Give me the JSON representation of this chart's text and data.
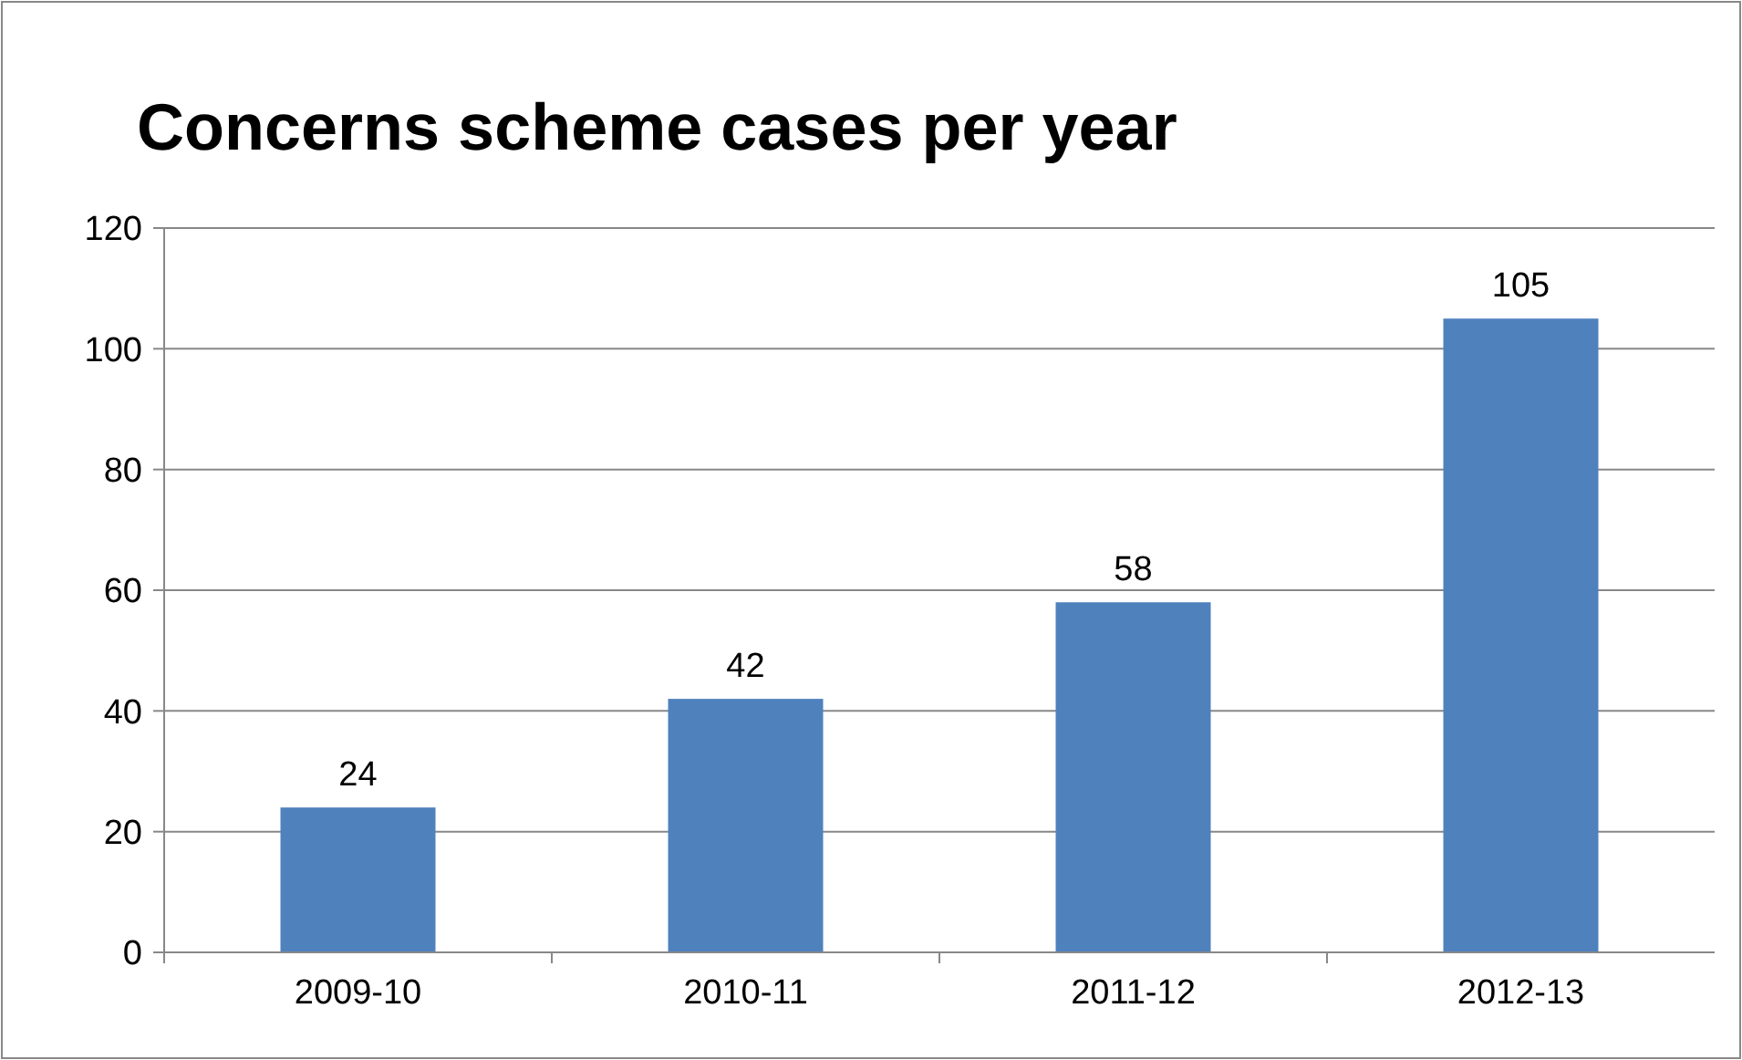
{
  "chart_data": {
    "type": "bar",
    "title": "Concerns scheme cases per year",
    "categories": [
      "2009-10",
      "2010-11",
      "2011-12",
      "2012-13"
    ],
    "values": [
      24,
      42,
      58,
      105
    ],
    "color": "#4f81bd",
    "ylim": [
      0,
      120
    ],
    "yticks": [
      0,
      20,
      40,
      60,
      80,
      100,
      120
    ],
    "grid": "y",
    "data_labels": true
  }
}
